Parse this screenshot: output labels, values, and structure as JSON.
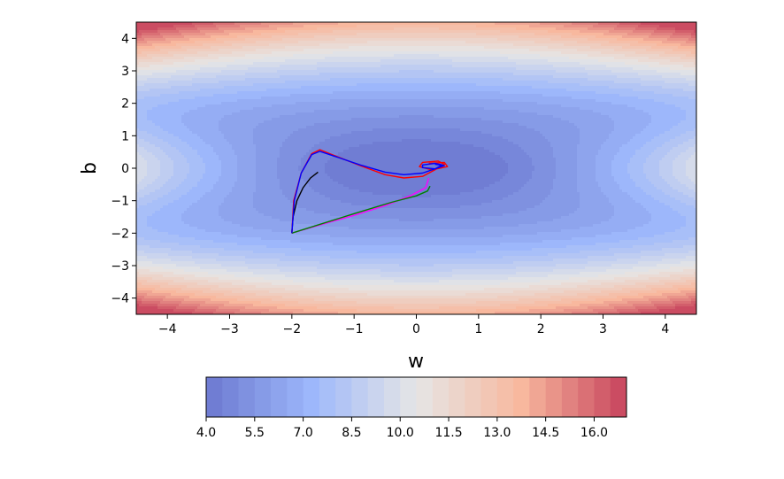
{
  "chart_data": {
    "type": "contour",
    "xlabel": "w",
    "ylabel": "b",
    "xlim": [
      -4.5,
      4.5
    ],
    "ylim": [
      -4.5,
      4.5
    ],
    "xticks": [
      -4,
      -3,
      -2,
      -1,
      0,
      1,
      2,
      3,
      4
    ],
    "xtick_labels": [
      "−4",
      "−3",
      "−2",
      "−1",
      "0",
      "1",
      "2",
      "3",
      "4"
    ],
    "yticks": [
      -4,
      -3,
      -2,
      -1,
      0,
      1,
      2,
      3,
      4
    ],
    "ytick_labels": [
      "−4",
      "−3",
      "−2",
      "−1",
      "0",
      "1",
      "2",
      "3",
      "4"
    ],
    "colormap": "coolwarm",
    "contour_alpha": 0.75,
    "level_range": [
      4.0,
      17.0
    ],
    "colorbar": {
      "orientation": "horizontal",
      "range": [
        4.0,
        17.0
      ],
      "ticks": [
        4.0,
        5.5,
        7.0,
        8.5,
        10.0,
        11.5,
        13.0,
        14.5,
        16.0
      ],
      "tick_labels": [
        "4.0",
        "5.5",
        "7.0",
        "8.5",
        "10.0",
        "11.5",
        "13.0",
        "14.5",
        "16.0"
      ]
    },
    "series": [
      {
        "color": "#000000",
        "points": [
          [
            -2.0,
            -2.0
          ],
          [
            -1.98,
            -1.5
          ],
          [
            -1.92,
            -1.0
          ],
          [
            -1.82,
            -0.6
          ],
          [
            -1.7,
            -0.3
          ],
          [
            -1.58,
            -0.12
          ]
        ]
      },
      {
        "color": "#ff00ff",
        "points": [
          [
            -2.0,
            -2.0
          ],
          [
            -1.5,
            -1.72
          ],
          [
            -1.0,
            -1.45
          ],
          [
            -0.5,
            -1.15
          ],
          [
            -0.1,
            -0.85
          ],
          [
            0.15,
            -0.6
          ],
          [
            0.2,
            -0.3
          ]
        ]
      },
      {
        "color": "#008000",
        "points": [
          [
            -2.0,
            -2.0
          ],
          [
            -1.0,
            -1.4
          ],
          [
            -0.4,
            -1.05
          ],
          [
            0.0,
            -0.85
          ],
          [
            0.18,
            -0.7
          ],
          [
            0.22,
            -0.55
          ]
        ]
      },
      {
        "color": "#ff0000",
        "points": [
          [
            -2.0,
            -2.0
          ],
          [
            -1.97,
            -1.0
          ],
          [
            -1.85,
            -0.15
          ],
          [
            -1.68,
            0.45
          ],
          [
            -1.55,
            0.57
          ],
          [
            -1.3,
            0.38
          ],
          [
            -0.9,
            0.08
          ],
          [
            -0.5,
            -0.2
          ],
          [
            -0.2,
            -0.3
          ],
          [
            0.1,
            -0.25
          ],
          [
            0.3,
            -0.05
          ],
          [
            0.45,
            0.12
          ],
          [
            0.35,
            0.22
          ],
          [
            0.1,
            0.18
          ],
          [
            0.05,
            0.05
          ],
          [
            0.25,
            -0.05
          ],
          [
            0.5,
            0.05
          ],
          [
            0.45,
            0.18
          ],
          [
            0.2,
            0.15
          ]
        ]
      },
      {
        "color": "#0000ff",
        "points": [
          [
            -2.0,
            -2.0
          ],
          [
            -1.96,
            -1.0
          ],
          [
            -1.85,
            -0.15
          ],
          [
            -1.68,
            0.42
          ],
          [
            -1.55,
            0.52
          ],
          [
            -1.3,
            0.36
          ],
          [
            -0.9,
            0.1
          ],
          [
            -0.5,
            -0.12
          ],
          [
            -0.2,
            -0.2
          ],
          [
            0.1,
            -0.15
          ],
          [
            0.3,
            -0.02
          ],
          [
            0.42,
            0.1
          ],
          [
            0.3,
            0.15
          ],
          [
            0.1,
            0.1
          ],
          [
            0.1,
            0.02
          ],
          [
            0.3,
            -0.02
          ],
          [
            0.45,
            0.08
          ],
          [
            0.3,
            0.12
          ]
        ]
      }
    ]
  }
}
